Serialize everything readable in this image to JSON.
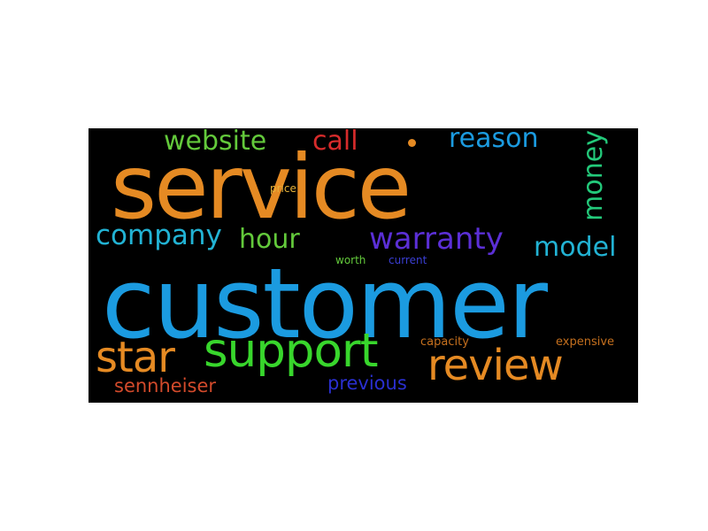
{
  "words": {
    "customer": {
      "text": "customer",
      "color": "#1b9be0"
    },
    "service": {
      "text": "service",
      "color": "#e58a23"
    },
    "support": {
      "text": "support",
      "color": "#38d62c"
    },
    "review": {
      "text": "review",
      "color": "#e58a23"
    },
    "star": {
      "text": "star",
      "color": "#e58a23"
    },
    "warranty": {
      "text": "warranty",
      "color": "#5b2fd6"
    },
    "company": {
      "text": "company",
      "color": "#22b3d4"
    },
    "website": {
      "text": "website",
      "color": "#63c93b"
    },
    "call": {
      "text": "call",
      "color": "#d62b2b"
    },
    "reason": {
      "text": "reason",
      "color": "#1b9be0"
    },
    "model": {
      "text": "model",
      "color": "#22b3d4"
    },
    "hour": {
      "text": "hour",
      "color": "#63c93b"
    },
    "money": {
      "text": "money",
      "color": "#23c97a"
    },
    "sennheiser": {
      "text": "sennheiser",
      "color": "#d24a2b"
    },
    "previous": {
      "text": "previous",
      "color": "#2a2fd0"
    },
    "capacity": {
      "text": "capacity",
      "color": "#c5701e"
    },
    "expensive": {
      "text": "expensive",
      "color": "#c5701e"
    },
    "price": {
      "text": "price",
      "color": "#e6b23a"
    },
    "worth": {
      "text": "worth",
      "color": "#63c93b"
    },
    "current": {
      "text": "current",
      "color": "#3b3fd6"
    }
  },
  "background_color": "#000000"
}
